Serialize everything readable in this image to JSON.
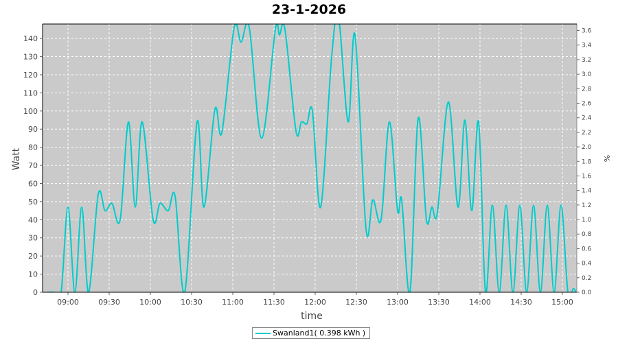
{
  "chart_data": {
    "type": "line",
    "title": "23-1-2026",
    "xlabel": "time",
    "ylabel": "Watt",
    "y2label": "%",
    "xlim": [
      "08:41",
      "15:10"
    ],
    "ylim": [
      0,
      148
    ],
    "y2lim": [
      0,
      3.69
    ],
    "x_ticks": [
      "09:00",
      "09:30",
      "10:00",
      "10:30",
      "11:00",
      "11:30",
      "12:00",
      "12:30",
      "13:00",
      "13:30",
      "14:00",
      "14:30",
      "15:00"
    ],
    "y_ticks": [
      0,
      10,
      20,
      30,
      40,
      50,
      60,
      70,
      80,
      90,
      100,
      110,
      120,
      130,
      140
    ],
    "y2_ticks": [
      "0.0",
      "0.2",
      "0.4",
      "0.6",
      "0.8",
      "1.0",
      "1.2",
      "1.4",
      "1.6",
      "1.8",
      "2.0",
      "2.2",
      "2.4",
      "2.6",
      "2.8",
      "3.0",
      "3.2",
      "3.4",
      "3.6"
    ],
    "grid": true,
    "legend_position": "bottom",
    "series": [
      {
        "name": "Swanland1( 0.398 kWh )",
        "color": "#00cccc",
        "points": [
          [
            "08:45",
            0
          ],
          [
            "08:50",
            0
          ],
          [
            "08:55",
            0
          ],
          [
            "09:00",
            47
          ],
          [
            "09:05",
            0
          ],
          [
            "09:10",
            47
          ],
          [
            "09:15",
            0
          ],
          [
            "09:22",
            54
          ],
          [
            "09:27",
            45
          ],
          [
            "09:32",
            49
          ],
          [
            "09:38",
            40
          ],
          [
            "09:44",
            94
          ],
          [
            "09:49",
            47
          ],
          [
            "09:54",
            94
          ],
          [
            "10:02",
            40
          ],
          [
            "10:07",
            49
          ],
          [
            "10:13",
            45
          ],
          [
            "10:18",
            53
          ],
          [
            "10:25",
            0
          ],
          [
            "10:34",
            94
          ],
          [
            "10:39",
            47
          ],
          [
            "10:47",
            101
          ],
          [
            "10:52",
            88
          ],
          [
            "11:01",
            146
          ],
          [
            "11:06",
            138
          ],
          [
            "11:12",
            146
          ],
          [
            "11:21",
            85
          ],
          [
            "11:31",
            145
          ],
          [
            "11:34",
            142
          ],
          [
            "11:38",
            145
          ],
          [
            "11:46",
            89
          ],
          [
            "11:50",
            94
          ],
          [
            "11:54",
            93
          ],
          [
            "11:58",
            100
          ],
          [
            "12:04",
            47
          ],
          [
            "12:12",
            130
          ],
          [
            "12:17",
            152
          ],
          [
            "12:24",
            94
          ],
          [
            "12:29",
            142
          ],
          [
            "12:37",
            35
          ],
          [
            "12:42",
            51
          ],
          [
            "12:48",
            40
          ],
          [
            "12:54",
            94
          ],
          [
            "13:00",
            45
          ],
          [
            "13:03",
            51
          ],
          [
            "13:09",
            0
          ],
          [
            "13:15",
            96
          ],
          [
            "13:21",
            40
          ],
          [
            "13:25",
            47
          ],
          [
            "13:29",
            44
          ],
          [
            "13:37",
            105
          ],
          [
            "13:44",
            47
          ],
          [
            "13:49",
            95
          ],
          [
            "13:54",
            45
          ],
          [
            "13:59",
            94
          ],
          [
            "14:04",
            0
          ],
          [
            "14:09",
            48
          ],
          [
            "14:14",
            0
          ],
          [
            "14:19",
            48
          ],
          [
            "14:24",
            0
          ],
          [
            "14:29",
            48
          ],
          [
            "14:34",
            0
          ],
          [
            "14:39",
            48
          ],
          [
            "14:44",
            0
          ],
          [
            "14:49",
            48
          ],
          [
            "14:54",
            0
          ],
          [
            "14:59",
            48
          ],
          [
            "15:04",
            0
          ],
          [
            "15:08",
            2
          ],
          [
            "15:10",
            0
          ]
        ]
      }
    ]
  }
}
